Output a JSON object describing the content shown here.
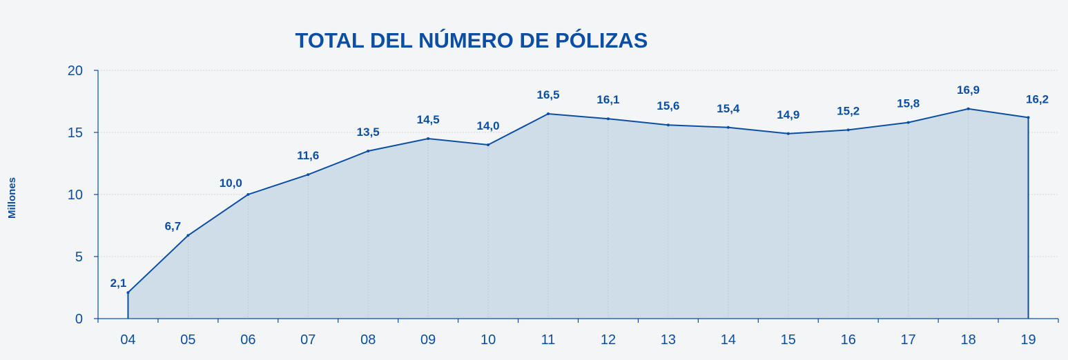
{
  "chart_data": {
    "type": "area",
    "title": "TOTAL DEL NÚMERO DE PÓLIZAS",
    "xlabel": "",
    "ylabel": "Millones",
    "categories": [
      "04",
      "05",
      "06",
      "07",
      "08",
      "09",
      "10",
      "11",
      "12",
      "13",
      "14",
      "15",
      "16",
      "17",
      "18",
      "19"
    ],
    "values": [
      2.1,
      6.7,
      10.0,
      11.6,
      13.5,
      14.5,
      14.0,
      16.5,
      16.1,
      15.6,
      15.4,
      14.9,
      15.2,
      15.8,
      16.9,
      16.2
    ],
    "data_labels": [
      "2,1",
      "6,7",
      "10,0",
      "11,6",
      "13,5",
      "14,5",
      "14,0",
      "16,5",
      "16,1",
      "15,6",
      "15,4",
      "14,9",
      "15,2",
      "15,8",
      "16,9",
      "16,2"
    ],
    "ylim": [
      0,
      20
    ],
    "yticks": [
      0,
      5,
      10,
      15,
      20
    ],
    "grid": true,
    "legend": "none",
    "colors": {
      "line": "#0b4ea2",
      "fill": "#cfdde9",
      "text": "#0b4ea2",
      "grid": "#cdd6e2",
      "axis": "#0b4ea2",
      "background": "#f4f5f7"
    }
  }
}
